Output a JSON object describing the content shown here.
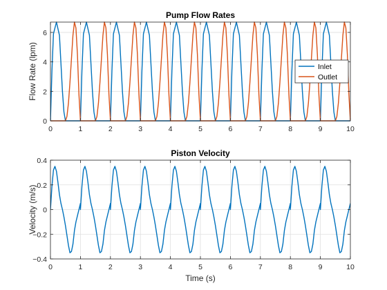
{
  "chart_data": [
    {
      "type": "line",
      "title": "Pump Flow Rates",
      "xlabel": "",
      "ylabel": "Flow Rate (lpm)",
      "xlim": [
        0,
        10
      ],
      "ylim": [
        0,
        6.7
      ],
      "xticks": [
        0,
        1,
        2,
        3,
        4,
        5,
        6,
        7,
        8,
        9,
        10
      ],
      "yticks": [
        0,
        2,
        4,
        6
      ],
      "grid": true,
      "legend": "right",
      "period": 1,
      "series": [
        {
          "name": "Inlet",
          "color": "#0072BD",
          "x": [
            0.0,
            0.05,
            0.1,
            0.2,
            0.3,
            0.35,
            0.4,
            0.45,
            0.5,
            0.55,
            1.0
          ],
          "y": [
            0.0,
            3.4,
            5.9,
            6.7,
            5.8,
            3.9,
            2.0,
            0.6,
            0.0,
            0.0,
            0.0
          ]
        },
        {
          "name": "Outlet",
          "color": "#D95319",
          "x": [
            0.0,
            0.5,
            0.55,
            0.6,
            0.65,
            0.7,
            0.75,
            0.8,
            0.85,
            0.9,
            0.95,
            1.0
          ],
          "y": [
            0.0,
            0.0,
            0.3,
            1.2,
            2.6,
            4.2,
            5.8,
            6.7,
            6.3,
            4.5,
            1.8,
            0.0
          ]
        }
      ]
    },
    {
      "type": "line",
      "title": "Piston Velocity",
      "xlabel": "Time (s)",
      "ylabel": "Velocity (m/s)",
      "xlim": [
        0,
        10
      ],
      "ylim": [
        -0.4,
        0.4
      ],
      "xticks": [
        0,
        1,
        2,
        3,
        4,
        5,
        6,
        7,
        8,
        9,
        10
      ],
      "yticks": [
        -0.4,
        -0.2,
        0,
        0.2,
        0.4
      ],
      "grid": true,
      "period": 1,
      "series": [
        {
          "color": "#0072BD",
          "x": [
            0.0,
            0.05,
            0.1,
            0.15,
            0.2,
            0.25,
            0.3,
            0.35,
            0.4,
            0.45,
            0.5,
            0.55,
            0.6,
            0.65,
            0.7,
            0.75,
            0.8,
            0.85,
            0.9,
            0.95,
            1.0
          ],
          "y": [
            0.0,
            0.19,
            0.32,
            0.35,
            0.31,
            0.22,
            0.12,
            0.05,
            0.0,
            -0.06,
            -0.13,
            -0.21,
            -0.29,
            -0.35,
            -0.34,
            -0.28,
            -0.17,
            -0.1,
            -0.05,
            0.0,
            0.05
          ]
        }
      ]
    }
  ]
}
